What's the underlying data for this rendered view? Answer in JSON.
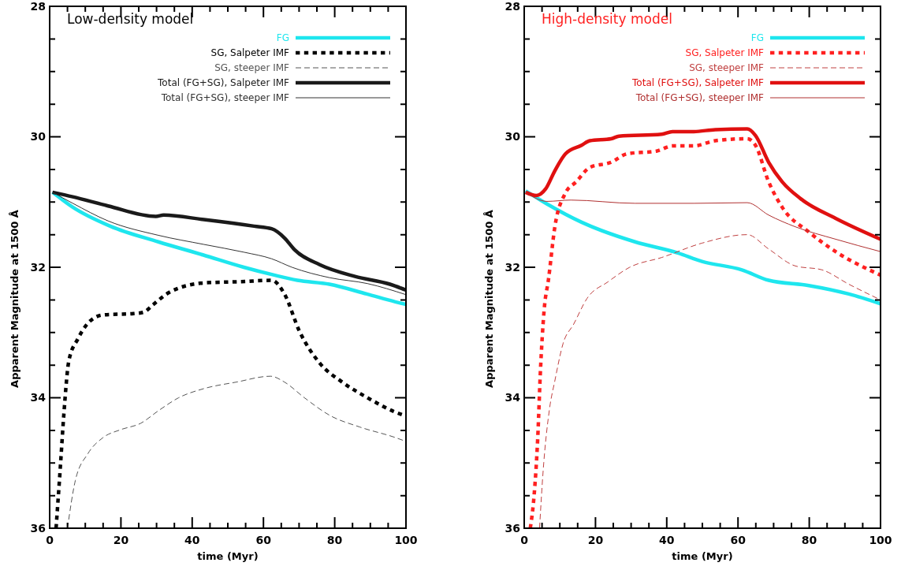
{
  "chart_data": [
    {
      "type": "line",
      "title": "Low-density model",
      "xlabel": "time (Myr)",
      "ylabel": "Apparent Magnitude at 1500 Å",
      "xlim": [
        0,
        100
      ],
      "ylim": [
        36,
        28
      ],
      "xticks": [
        0,
        {
          "value": 5,
          "label": null
        },
        {
          "value": 10,
          "label": null
        },
        {
          "value": 15,
          "label": null
        },
        20,
        {
          "value": 25,
          "label": null
        },
        {
          "value": 30,
          "label": null
        },
        {
          "value": 35,
          "label": null
        },
        40,
        {
          "value": 45,
          "label": null
        },
        {
          "value": 50,
          "label": null
        },
        {
          "value": 55,
          "label": null
        },
        60,
        {
          "value": 65,
          "label": null
        },
        {
          "value": 70,
          "label": null
        },
        {
          "value": 75,
          "label": null
        },
        80,
        {
          "value": 85,
          "label": null
        },
        {
          "value": 90,
          "label": null
        },
        {
          "value": 95,
          "label": null
        },
        100
      ],
      "yticks": [
        28,
        {
          "value": 28.5,
          "label": null
        },
        {
          "value": 29,
          "label": null
        },
        {
          "value": 29.5,
          "label": null
        },
        30,
        {
          "value": 30.5,
          "label": null
        },
        {
          "value": 31,
          "label": null
        },
        {
          "value": 31.5,
          "label": null
        },
        32,
        {
          "value": 32.5,
          "label": null
        },
        {
          "value": 33,
          "label": null
        },
        {
          "value": 33.5,
          "label": null
        },
        34,
        {
          "value": 34.5,
          "label": null
        },
        {
          "value": 35,
          "label": null
        },
        {
          "value": 35.5,
          "label": null
        },
        36
      ],
      "legend": "top right",
      "grid": false,
      "series": [
        {
          "name": "FG",
          "color": "#1ee6ee",
          "line_style": "solid",
          "x": [
            0.8,
            6.5,
            17,
            30.5,
            43,
            54.5,
            63,
            69.5,
            78.5,
            89,
            97,
            100
          ],
          "values": [
            30.85,
            31.08,
            31.37,
            31.61,
            31.81,
            32.0,
            32.12,
            32.2,
            32.26,
            32.41,
            32.53,
            32.57
          ]
        },
        {
          "name": "SG, Salpeter IMF",
          "color": "#000000",
          "line_style": "dotted",
          "x": [
            1.8,
            3,
            4,
            5.4,
            7.9,
            10.7,
            15,
            23.5,
            26.3,
            29.1,
            33.4,
            43.3,
            53.9,
            62.3,
            65.9,
            70.1,
            75.8,
            82.1,
            89.2,
            97,
            100
          ],
          "values": [
            36,
            35.06,
            34.24,
            33.43,
            33.1,
            32.86,
            32.73,
            32.71,
            32.69,
            32.57,
            32.39,
            32.24,
            32.22,
            32.2,
            32.41,
            32.98,
            33.47,
            33.76,
            34.0,
            34.22,
            34.28
          ]
        },
        {
          "name": "SG, steeper IMF",
          "color": "#555555",
          "line_style": "dashed",
          "x": [
            5,
            7.2,
            10.7,
            15,
            19.9,
            25.6,
            30.5,
            36.2,
            43.3,
            52.4,
            62,
            65.9,
            71.5,
            78.6,
            87.1,
            97,
            100
          ],
          "values": [
            36,
            35.27,
            34.86,
            34.61,
            34.49,
            34.39,
            34.2,
            34.0,
            33.86,
            33.76,
            33.67,
            33.76,
            34.0,
            34.27,
            34.45,
            34.61,
            34.67
          ]
        },
        {
          "name": "Total (FG+SG), Salpeter IMF",
          "color": "#1a1a1a",
          "line_style": "solid",
          "x": [
            0.8,
            6.5,
            16.4,
            29.8,
            32,
            43.3,
            57.4,
            62.3,
            65.9,
            68.7,
            75.8,
            85.7,
            95.5,
            100
          ],
          "values": [
            30.85,
            30.92,
            31.06,
            31.22,
            31.2,
            31.27,
            31.37,
            31.41,
            31.55,
            31.73,
            31.96,
            32.14,
            32.26,
            32.35
          ]
        },
        {
          "name": "Total (FG+SG), steeper IMF",
          "color": "#333333",
          "line_style": "solid",
          "x": [
            0.8,
            6.5,
            16.4,
            30.5,
            43.3,
            54.6,
            62.3,
            68,
            78.6,
            89.2,
            100
          ],
          "values": [
            30.85,
            31.02,
            31.29,
            31.51,
            31.65,
            31.77,
            31.87,
            32.0,
            32.16,
            32.25,
            32.42
          ]
        }
      ]
    },
    {
      "type": "line",
      "title": "High-density model",
      "xlabel": "time (Myr)",
      "ylabel": "Apparent Magnitude at 1500 Å",
      "xlim": [
        0,
        100
      ],
      "ylim": [
        36,
        28
      ],
      "xticks": [
        0,
        {
          "value": 5,
          "label": null
        },
        {
          "value": 10,
          "label": null
        },
        {
          "value": 15,
          "label": null
        },
        20,
        {
          "value": 25,
          "label": null
        },
        {
          "value": 30,
          "label": null
        },
        {
          "value": 35,
          "label": null
        },
        40,
        {
          "value": 45,
          "label": null
        },
        {
          "value": 50,
          "label": null
        },
        {
          "value": 55,
          "label": null
        },
        60,
        {
          "value": 65,
          "label": null
        },
        {
          "value": 70,
          "label": null
        },
        {
          "value": 75,
          "label": null
        },
        80,
        {
          "value": 85,
          "label": null
        },
        {
          "value": 90,
          "label": null
        },
        {
          "value": 95,
          "label": null
        },
        100
      ],
      "yticks": [
        28,
        {
          "value": 28.5,
          "label": null
        },
        {
          "value": 29,
          "label": null
        },
        {
          "value": 29.5,
          "label": null
        },
        30,
        {
          "value": 30.5,
          "label": null
        },
        {
          "value": 31,
          "label": null
        },
        {
          "value": 31.5,
          "label": null
        },
        32,
        {
          "value": 32.5,
          "label": null
        },
        {
          "value": 33,
          "label": null
        },
        {
          "value": 33.5,
          "label": null
        },
        34,
        {
          "value": 34.5,
          "label": null
        },
        {
          "value": 35,
          "label": null
        },
        {
          "value": 35.5,
          "label": null
        },
        36
      ],
      "legend": "top right",
      "grid": false,
      "series": [
        {
          "name": "FG",
          "color": "#1ee6ee",
          "line_style": "solid",
          "x": [
            0.4,
            6.4,
            16.1,
            31.1,
            43.1,
            49.9,
            61.1,
            68.6,
            79.9,
            91.1,
            100
          ],
          "values": [
            30.83,
            31.03,
            31.31,
            31.61,
            31.78,
            31.91,
            32.04,
            32.2,
            32.28,
            32.41,
            32.56
          ]
        },
        {
          "name": "SG, Salpeter IMF",
          "color": "#ff2020",
          "line_style": "dotted",
          "x": [
            1.7,
            2.8,
            3.8,
            4.5,
            5.6,
            6.8,
            8.6,
            11.6,
            14.6,
            18.4,
            24.4,
            28.9,
            37.1,
            41.6,
            47.6,
            53.6,
            62.6,
            64.9,
            68.6,
            72.4,
            79.9,
            87.4,
            100
          ],
          "values": [
            36,
            35.48,
            34.61,
            33.65,
            32.65,
            32.19,
            31.38,
            30.86,
            30.69,
            30.47,
            30.39,
            30.26,
            30.22,
            30.14,
            30.14,
            30.06,
            30.03,
            30.13,
            30.69,
            31.08,
            31.46,
            31.76,
            32.12
          ]
        },
        {
          "name": "SG, steeper IMF",
          "color": "#c04040",
          "line_style": "dashed",
          "x": [
            4.3,
            5.3,
            7.1,
            8.6,
            10.9,
            13.9,
            17.6,
            23.6,
            29.6,
            38.6,
            49.9,
            62.6,
            68.6,
            76.1,
            83.6,
            91.1,
            100
          ],
          "values": [
            36,
            35.13,
            34.17,
            33.74,
            33.17,
            32.87,
            32.48,
            32.22,
            32.0,
            31.85,
            31.63,
            31.5,
            31.72,
            31.98,
            32.04,
            32.26,
            32.5
          ]
        },
        {
          "name": "Total (FG+SG), Salpeter IMF",
          "color": "#e01010",
          "line_style": "solid",
          "x": [
            0.4,
            3.4,
            6,
            8.6,
            11.6,
            16.1,
            18.4,
            24.4,
            26.6,
            38.6,
            41.6,
            47.6,
            53.6,
            62.6,
            64.9,
            68.6,
            72.4,
            77.6,
            87.4,
            100
          ],
          "values": [
            30.85,
            30.9,
            30.8,
            30.52,
            30.26,
            30.13,
            30.06,
            30.03,
            29.99,
            29.96,
            29.92,
            29.92,
            29.89,
            29.88,
            29.98,
            30.39,
            30.69,
            30.95,
            31.25,
            31.57
          ]
        },
        {
          "name": "Total (FG+SG), steeper IMF",
          "color": "#b03030",
          "line_style": "solid",
          "x": [
            0.4,
            6.4,
            13.1,
            31.1,
            47.6,
            62.6,
            68.6,
            76.1,
            87.4,
            100
          ],
          "values": [
            30.85,
            30.99,
            30.97,
            31.02,
            31.02,
            31.01,
            31.2,
            31.38,
            31.57,
            31.76
          ]
        }
      ]
    }
  ]
}
